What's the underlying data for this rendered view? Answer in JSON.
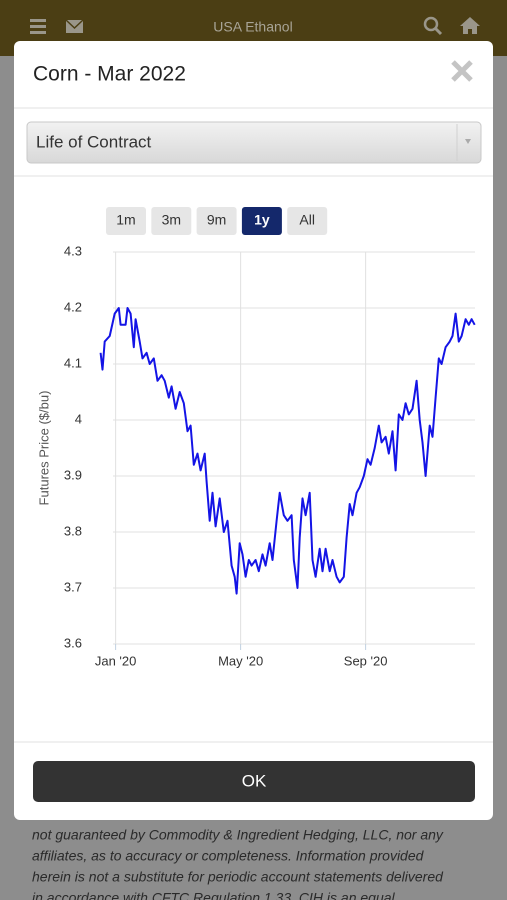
{
  "header": {
    "title": "USA Ethanol"
  },
  "modal": {
    "title": "Corn - Mar 2022",
    "select": "Life of Contract",
    "ranges": [
      "1m",
      "3m",
      "9m",
      "1y",
      "All"
    ],
    "active_range": "1y",
    "button": "OK"
  },
  "background_text": [
    "not guaranteed by Commodity & Ingredient Hedging, LLC, nor any",
    "affiliates, as to accuracy or completeness. Information provided",
    "herein is not a substitute for periodic account statements delivered",
    "in accordance with CFTC Regulation 1.33. CIH is an equal"
  ],
  "chart_data": {
    "type": "line",
    "ylabel": "Futures Price ($/bu)",
    "color": "#1414e6",
    "grid": true,
    "x": [
      -0.48,
      -0.42,
      -0.35,
      -0.19,
      -0.03,
      0.1,
      0.16,
      0.32,
      0.38,
      0.48,
      0.58,
      0.64,
      0.77,
      0.86,
      0.99,
      1.09,
      1.22,
      1.34,
      1.47,
      1.57,
      1.7,
      1.79,
      1.92,
      2.05,
      2.18,
      2.3,
      2.4,
      2.5,
      2.62,
      2.72,
      2.85,
      2.91,
      3.01,
      3.1,
      3.2,
      3.33,
      3.46,
      3.58,
      3.71,
      3.81,
      3.87,
      3.97,
      4.06,
      4.16,
      4.26,
      4.35,
      4.48,
      4.58,
      4.7,
      4.8,
      4.93,
      5.02,
      5.15,
      5.25,
      5.38,
      5.5,
      5.63,
      5.7,
      5.82,
      5.89,
      5.98,
      6.08,
      6.21,
      6.3,
      6.4,
      6.53,
      6.62,
      6.72,
      6.85,
      6.94,
      7.07,
      7.17,
      7.3,
      7.39,
      7.49,
      7.58,
      7.71,
      7.81,
      7.94,
      8.06,
      8.16,
      8.29,
      8.42,
      8.51,
      8.64,
      8.74,
      8.86,
      8.96,
      9.06,
      9.18,
      9.28,
      9.38,
      9.5,
      9.63,
      9.73,
      9.82,
      9.92,
      10.05,
      10.14,
      10.24,
      10.34,
      10.43,
      10.56,
      10.69,
      10.78,
      10.88,
      10.98,
      11.07,
      11.2,
      11.3,
      11.39,
      11.49
    ],
    "values": [
      4.12,
      4.09,
      4.14,
      4.15,
      4.19,
      4.2,
      4.17,
      4.17,
      4.2,
      4.19,
      4.13,
      4.18,
      4.14,
      4.11,
      4.12,
      4.1,
      4.11,
      4.07,
      4.08,
      4.07,
      4.04,
      4.06,
      4.02,
      4.05,
      4.03,
      3.98,
      3.99,
      3.92,
      3.94,
      3.91,
      3.94,
      3.89,
      3.82,
      3.87,
      3.81,
      3.86,
      3.8,
      3.82,
      3.74,
      3.72,
      3.69,
      3.78,
      3.76,
      3.72,
      3.75,
      3.74,
      3.75,
      3.73,
      3.76,
      3.74,
      3.78,
      3.75,
      3.82,
      3.87,
      3.83,
      3.82,
      3.83,
      3.75,
      3.7,
      3.79,
      3.86,
      3.83,
      3.87,
      3.75,
      3.72,
      3.77,
      3.73,
      3.77,
      3.73,
      3.75,
      3.72,
      3.71,
      3.72,
      3.79,
      3.85,
      3.83,
      3.87,
      3.88,
      3.9,
      3.93,
      3.92,
      3.95,
      3.99,
      3.96,
      3.97,
      3.94,
      3.98,
      3.91,
      4.01,
      4.0,
      4.03,
      4.01,
      4.02,
      4.07,
      4.0,
      3.96,
      3.9,
      3.99,
      3.97,
      4.04,
      4.11,
      4.1,
      4.13,
      4.14,
      4.15,
      4.19,
      4.14,
      4.15,
      4.18,
      4.17,
      4.18,
      4.17
    ],
    "xlim": [
      -0.5,
      11.5
    ],
    "xticks": [
      {
        "value": 0,
        "label": "Jan '20"
      },
      {
        "value": 4,
        "label": "May '20"
      },
      {
        "value": 8,
        "label": "Sep '20"
      }
    ],
    "ylim": [
      3.6,
      4.3
    ],
    "yticks": [
      3.6,
      3.7,
      3.8,
      3.9,
      4,
      4.1,
      4.2,
      4.3
    ]
  }
}
